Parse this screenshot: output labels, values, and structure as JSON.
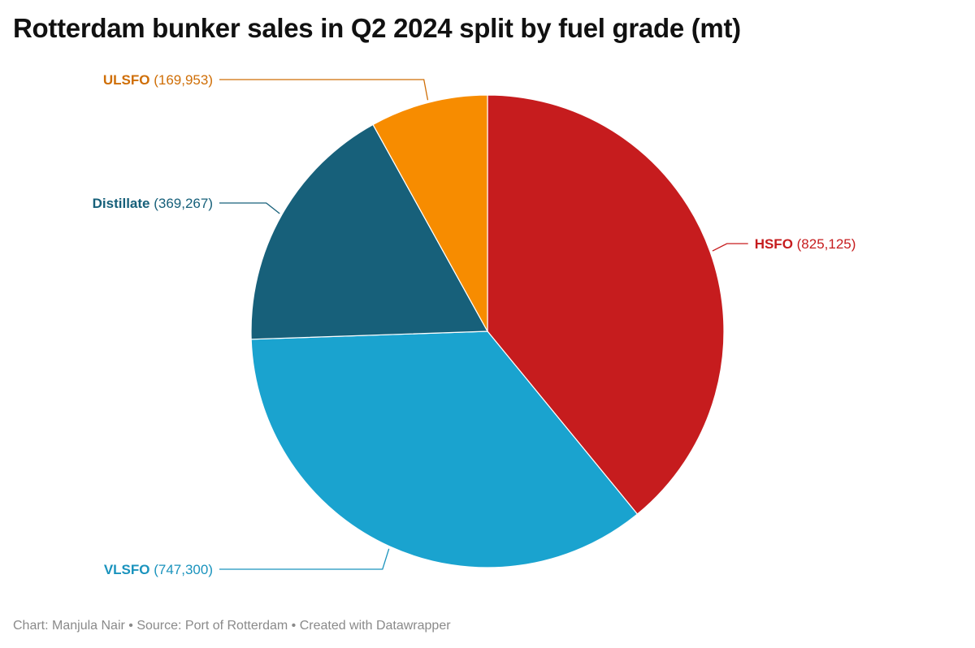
{
  "title": "Rotterdam bunker sales in Q2 2024 split by fuel grade (mt)",
  "footer": {
    "credit": "Chart: Manjula Nair",
    "source": "Source: Port of Rotterdam",
    "tool": "Created with Datawrapper",
    "separator": " • "
  },
  "chart_data": {
    "type": "pie",
    "title": "Rotterdam bunker sales in Q2 2024 split by fuel grade (mt)",
    "unit": "mt",
    "legend": "none",
    "start_angle_deg": 0,
    "direction": "clockwise",
    "slices": [
      {
        "label": "HSFO",
        "value": 825125,
        "display": "(825,125)",
        "color": "#c61c1e",
        "label_color": "#c61c1e"
      },
      {
        "label": "VLSFO",
        "value": 747300,
        "display": "(747,300)",
        "color": "#1aa3cf",
        "label_color": "#1a93bd"
      },
      {
        "label": "Distillate",
        "value": 369267,
        "display": "(369,267)",
        "color": "#17607a",
        "label_color": "#17607a"
      },
      {
        "label": "ULSFO",
        "value": 169953,
        "display": "(169,953)",
        "color": "#f78c00",
        "label_color": "#cf6e06"
      }
    ]
  }
}
